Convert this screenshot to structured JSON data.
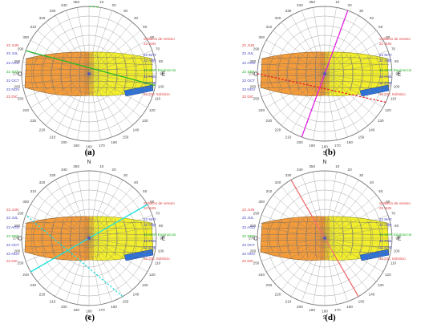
{
  "panels": [
    {
      "caption": "(a)",
      "overlay": [
        {
          "kind": "dashed",
          "color": "#2bb52b",
          "angles": [
            8,
            360
          ]
        },
        {
          "kind": "solid",
          "color": "#2bb52b",
          "angles": [
            100,
            290
          ]
        }
      ]
    },
    {
      "caption": "(b)",
      "overlay": [
        {
          "kind": "solid",
          "color": "#e020e0",
          "angles": [
            20,
            200
          ]
        },
        {
          "kind": "dashed",
          "color": "#e02020",
          "angles": [
            115,
            270
          ]
        }
      ]
    },
    {
      "caption": "(c)",
      "overlay": [
        {
          "kind": "solid",
          "color": "#20e0e0",
          "angles": [
            60,
            240
          ]
        },
        {
          "kind": "dashed",
          "color": "#20e0e0",
          "angles": [
            150,
            290
          ]
        }
      ]
    },
    {
      "caption": "(d)",
      "overlay": [
        {
          "kind": "solid",
          "color": "#f07070",
          "angles": [
            330,
            150
          ]
        }
      ]
    }
  ],
  "cardinals": {
    "n": "N",
    "s": "S",
    "e": "E",
    "w": "O"
  },
  "right_labels": [
    {
      "text": "Solsticio de verano",
      "color": "#e04040"
    },
    {
      "text": "22 JUN",
      "color": "#e04040"
    },
    {
      "text": "22 MAY",
      "color": "#4040c0"
    },
    {
      "text": "22 ABR",
      "color": "#4040c0"
    },
    {
      "text": "22 MAR  Equinoccio",
      "color": "#20b020"
    },
    {
      "text": "22 FEB",
      "color": "#4040c0"
    },
    {
      "text": "22 ENE",
      "color": "#4040c0"
    },
    {
      "text": "22 DIC  Solsticio",
      "color": "#e04040"
    }
  ],
  "left_labels": [
    {
      "text": "22 JUN",
      "color": "#e04040"
    },
    {
      "text": "22 JUL",
      "color": "#4040c0"
    },
    {
      "text": "22 AGO",
      "color": "#4040c0"
    },
    {
      "text": "22 SEP",
      "color": "#20b020"
    },
    {
      "text": "22 OCT",
      "color": "#4040c0"
    },
    {
      "text": "22 NOV",
      "color": "#4040c0"
    },
    {
      "text": "22 DIC",
      "color": "#e04040"
    }
  ],
  "colors": {
    "west_band": "#f49b3a",
    "east_band": "#f2ee2c",
    "shade_box": "#2f72d6",
    "grid": "#7c7c7c",
    "hour_lines": "#6b6b6b"
  }
}
